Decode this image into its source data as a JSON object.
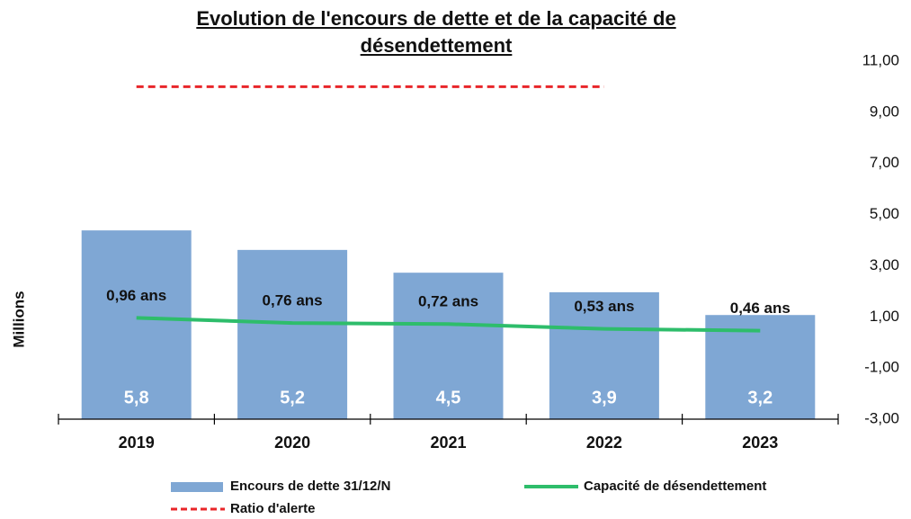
{
  "chart_data": {
    "type": "bar",
    "title": "Evolution de l'encours de dette et de la capacité de désendettement",
    "ylabel": "Millions",
    "categories": [
      "2019",
      "2020",
      "2021",
      "2022",
      "2023"
    ],
    "ylim": [
      0,
      11
    ],
    "y2lim": [
      -3,
      11
    ],
    "y2ticks": [
      {
        "value": -3,
        "label": "-3,00"
      },
      {
        "value": -1,
        "label": "-1,00"
      },
      {
        "value": 1,
        "label": "1,00"
      },
      {
        "value": 3,
        "label": "3,00"
      },
      {
        "value": 5,
        "label": "5,00"
      },
      {
        "value": 7,
        "label": "7,00"
      },
      {
        "value": 9,
        "label": "9,00"
      },
      {
        "value": 11,
        "label": "11,00"
      }
    ],
    "series": [
      {
        "name": "Encours de dette 31/12/N",
        "type": "bar",
        "color": "#7fa7d4",
        "values": [
          5.8,
          5.2,
          4.5,
          3.9,
          3.2
        ],
        "value_labels": [
          "5,8",
          "5,2",
          "4,5",
          "3,9",
          "3,2"
        ]
      },
      {
        "name": "Capacité de désendettement",
        "type": "line",
        "axis": "y2",
        "color": "#2ebd6b",
        "values": [
          0.96,
          0.76,
          0.72,
          0.53,
          0.46
        ],
        "value_labels": [
          "0,96 ans",
          "0,76 ans",
          "0,72 ans",
          "0,53 ans",
          "0,46 ans"
        ]
      },
      {
        "name": "Ratio d'alerte",
        "type": "dashed",
        "axis": "y2",
        "color": "#e8262a",
        "values": [
          10,
          10,
          10,
          10,
          null
        ]
      }
    ]
  }
}
